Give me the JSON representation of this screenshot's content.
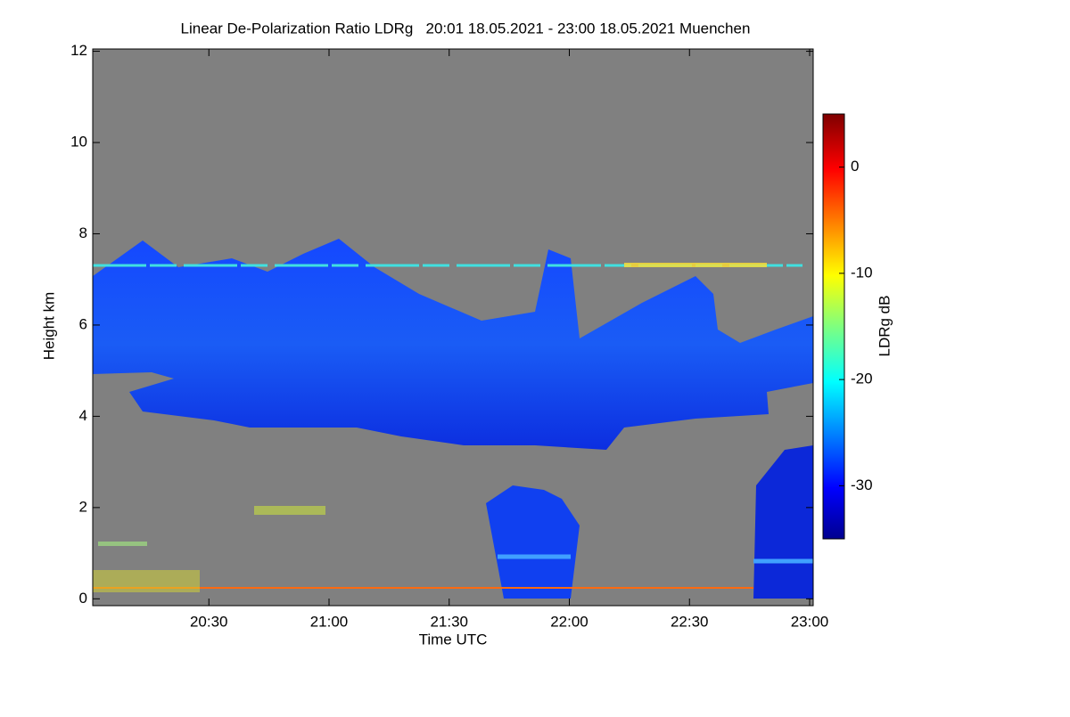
{
  "chart_data": {
    "type": "heatmap",
    "title": "Linear De-Polarization Ratio LDRg   20:01 18.05.2021 - 23:00 18.05.2021 Muenchen",
    "x_label": "Time UTC",
    "y_label": "Height km",
    "colorbar_label": "LDRg dB",
    "xlim": [
      "20:01",
      "23:00"
    ],
    "xticks": [
      "20:30",
      "21:00",
      "21:30",
      "22:00",
      "22:30",
      "23:00"
    ],
    "ylim": [
      -0.15,
      12.05
    ],
    "yticks": [
      0,
      2,
      4,
      6,
      8,
      10,
      12
    ],
    "clim": [
      -35,
      5
    ],
    "cticks": [
      0,
      -10,
      -20,
      -30
    ],
    "colormap": "jet"
  }
}
